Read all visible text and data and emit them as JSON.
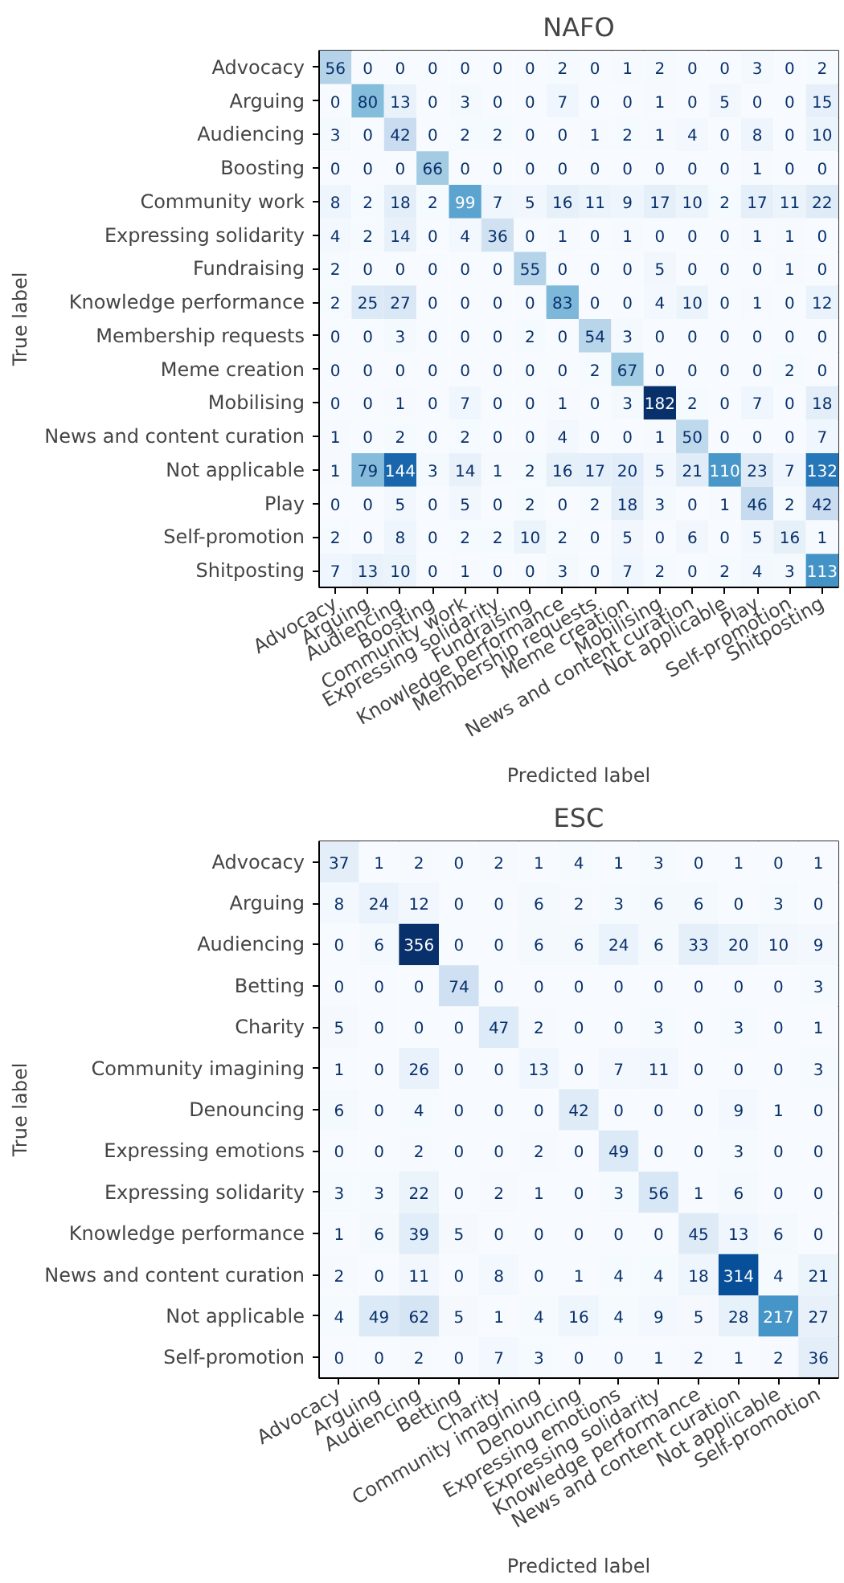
{
  "chart_data": [
    {
      "type": "heatmap",
      "title": "NAFO",
      "xlabel": "Predicted label",
      "ylabel": "True label",
      "data_labels": true,
      "categories": [
        "Advocacy",
        "Arguing",
        "Audiencing",
        "Boosting",
        "Community work",
        "Expressing solidarity",
        "Fundraising",
        "Knowledge performance",
        "Membership requests",
        "Meme creation",
        "Mobilising",
        "News and content curation",
        "Not applicable",
        "Play",
        "Self-promotion",
        "Shitposting"
      ],
      "y_categories": [
        "Advocacy",
        "Arguing",
        "Audiencing",
        "Boosting",
        "Community work",
        "Expressing solidarity",
        "Fundraising",
        "Knowledge performance",
        "Membership requests",
        "Meme creation",
        "Mobilising",
        "News and content curation",
        "Not applicable",
        "Play",
        "Self-promotion",
        "Shitposting"
      ],
      "cells": [
        [
          56,
          0,
          0,
          0,
          0,
          0,
          0,
          2,
          0,
          1,
          2,
          0,
          0,
          3,
          0,
          2
        ],
        [
          0,
          80,
          13,
          0,
          3,
          0,
          0,
          7,
          0,
          0,
          1,
          0,
          5,
          0,
          0,
          15
        ],
        [
          3,
          0,
          42,
          0,
          2,
          2,
          0,
          0,
          1,
          2,
          1,
          4,
          0,
          8,
          0,
          10
        ],
        [
          0,
          0,
          0,
          66,
          0,
          0,
          0,
          0,
          0,
          0,
          0,
          0,
          0,
          1,
          0,
          0
        ],
        [
          8,
          2,
          18,
          2,
          99,
          7,
          5,
          16,
          11,
          9,
          17,
          10,
          2,
          17,
          11,
          22
        ],
        [
          4,
          2,
          14,
          0,
          4,
          36,
          0,
          1,
          0,
          1,
          0,
          0,
          0,
          1,
          1,
          0
        ],
        [
          2,
          0,
          0,
          0,
          0,
          0,
          55,
          0,
          0,
          0,
          5,
          0,
          0,
          0,
          1,
          0
        ],
        [
          2,
          25,
          27,
          0,
          0,
          0,
          0,
          83,
          0,
          0,
          4,
          10,
          0,
          1,
          0,
          12
        ],
        [
          0,
          0,
          3,
          0,
          0,
          0,
          2,
          0,
          54,
          3,
          0,
          0,
          0,
          0,
          0,
          0
        ],
        [
          0,
          0,
          0,
          0,
          0,
          0,
          0,
          0,
          2,
          67,
          0,
          0,
          0,
          0,
          2,
          0
        ],
        [
          0,
          0,
          1,
          0,
          7,
          0,
          0,
          1,
          0,
          3,
          182,
          2,
          0,
          7,
          0,
          18
        ],
        [
          1,
          0,
          2,
          0,
          2,
          0,
          0,
          4,
          0,
          0,
          1,
          50,
          0,
          0,
          0,
          7
        ],
        [
          1,
          79,
          144,
          3,
          14,
          1,
          2,
          16,
          17,
          20,
          5,
          21,
          110,
          23,
          7,
          132
        ],
        [
          0,
          0,
          5,
          0,
          5,
          0,
          2,
          0,
          2,
          18,
          3,
          0,
          1,
          46,
          2,
          42
        ],
        [
          2,
          0,
          8,
          0,
          2,
          2,
          10,
          2,
          0,
          5,
          0,
          6,
          0,
          5,
          16,
          1
        ],
        [
          7,
          13,
          10,
          0,
          1,
          0,
          0,
          3,
          0,
          7,
          2,
          0,
          2,
          4,
          3,
          113
        ]
      ]
    },
    {
      "type": "heatmap",
      "title": "ESC",
      "xlabel": "Predicted label",
      "ylabel": "True label",
      "data_labels": true,
      "categories": [
        "Advocacy",
        "Arguing",
        "Audiencing",
        "Betting",
        "Charity",
        "Community imagining",
        "Denouncing",
        "Expressing emotions",
        "Expressing solidarity",
        "Knowledge performance",
        "News and content curation",
        "Not applicable",
        "Self-promotion"
      ],
      "y_categories": [
        "Advocacy",
        "Arguing",
        "Audiencing",
        "Betting",
        "Charity",
        "Community imagining",
        "Denouncing",
        "Expressing emotions",
        "Expressing solidarity",
        "Knowledge performance",
        "News and content curation",
        "Not applicable",
        "Self-promotion"
      ],
      "cells": [
        [
          37,
          1,
          2,
          0,
          2,
          1,
          4,
          1,
          3,
          0,
          1,
          0,
          1
        ],
        [
          8,
          24,
          12,
          0,
          0,
          6,
          2,
          3,
          6,
          6,
          0,
          3,
          0
        ],
        [
          0,
          6,
          356,
          0,
          0,
          6,
          6,
          24,
          6,
          33,
          20,
          10,
          9
        ],
        [
          0,
          0,
          0,
          74,
          0,
          0,
          0,
          0,
          0,
          0,
          0,
          0,
          3
        ],
        [
          5,
          0,
          0,
          0,
          47,
          2,
          0,
          0,
          3,
          0,
          3,
          0,
          1
        ],
        [
          1,
          0,
          26,
          0,
          0,
          13,
          0,
          7,
          11,
          0,
          0,
          0,
          3
        ],
        [
          6,
          0,
          4,
          0,
          0,
          0,
          42,
          0,
          0,
          0,
          9,
          1,
          0
        ],
        [
          0,
          0,
          2,
          0,
          0,
          2,
          0,
          49,
          0,
          0,
          3,
          0,
          0
        ],
        [
          3,
          3,
          22,
          0,
          2,
          1,
          0,
          3,
          56,
          1,
          6,
          0,
          0
        ],
        [
          1,
          6,
          39,
          5,
          0,
          0,
          0,
          0,
          0,
          45,
          13,
          6,
          0
        ],
        [
          2,
          0,
          11,
          0,
          8,
          0,
          1,
          4,
          4,
          18,
          314,
          4,
          21
        ],
        [
          4,
          49,
          62,
          5,
          1,
          4,
          16,
          4,
          9,
          5,
          28,
          217,
          27
        ],
        [
          0,
          0,
          2,
          0,
          7,
          3,
          0,
          0,
          1,
          2,
          1,
          2,
          36
        ]
      ]
    }
  ]
}
